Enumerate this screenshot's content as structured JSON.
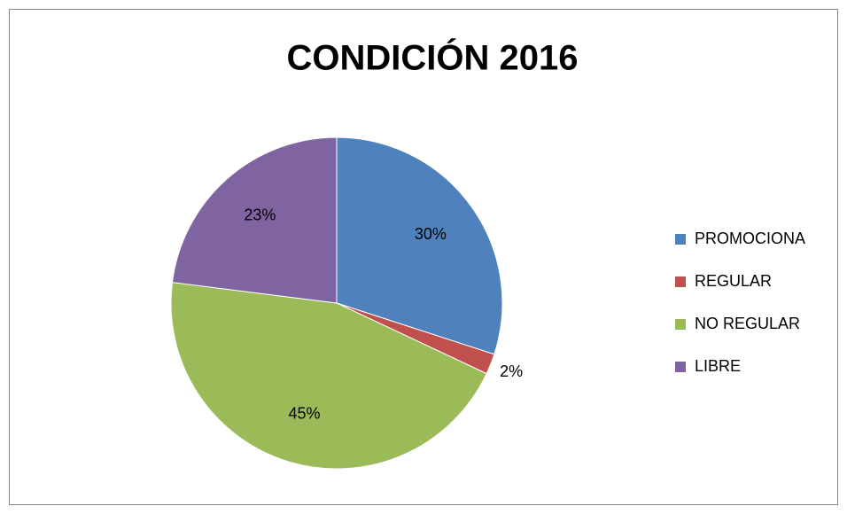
{
  "chart_data": {
    "type": "pie",
    "title": "CONDICIÓN 2016",
    "categories": [
      "PROMOCIONA",
      "REGULAR",
      "NO REGULAR",
      "LIBRE"
    ],
    "values": [
      30,
      2,
      45,
      23
    ],
    "value_labels": [
      "30%",
      "2%",
      "45%",
      "23%"
    ],
    "colors": [
      "#4f81bd",
      "#c0504d",
      "#9bbb59",
      "#8064a2"
    ],
    "legend": "right"
  }
}
